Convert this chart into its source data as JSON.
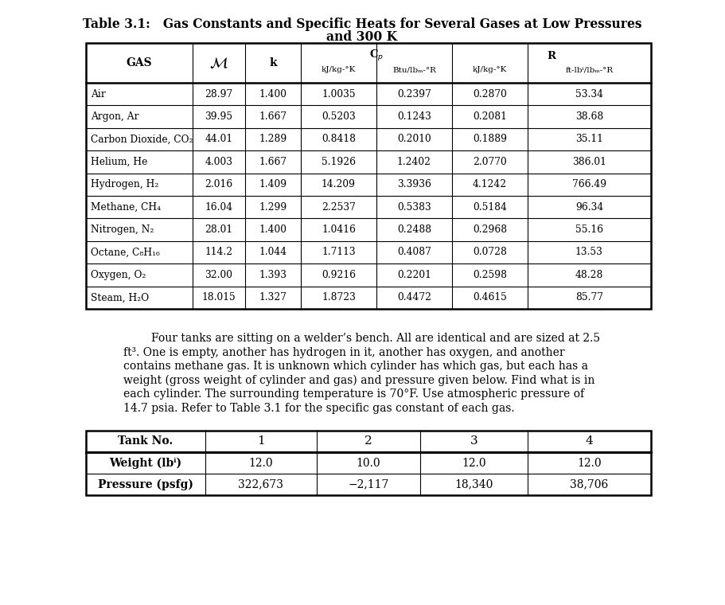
{
  "title_line1": "Table 3.1:   Gas Constants and Specific Heats for Several Gases at Low Pressures",
  "title_line2": "and 300 K",
  "table1_rows": [
    [
      "Air",
      "28.97",
      "1.400",
      "1.0035",
      "0.2397",
      "0.2870",
      "53.34"
    ],
    [
      "Argon, Ar",
      "39.95",
      "1.667",
      "0.5203",
      "0.1243",
      "0.2081",
      "38.68"
    ],
    [
      "Carbon Dioxide, CO₂",
      "44.01",
      "1.289",
      "0.8418",
      "0.2010",
      "0.1889",
      "35.11"
    ],
    [
      "Helium, He",
      "4.003",
      "1.667",
      "5.1926",
      "1.2402",
      "2.0770",
      "386.01"
    ],
    [
      "Hydrogen, H₂",
      "2.016",
      "1.409",
      "14.209",
      "3.3936",
      "4.1242",
      "766.49"
    ],
    [
      "Methane, CH₄",
      "16.04",
      "1.299",
      "2.2537",
      "0.5383",
      "0.5184",
      "96.34"
    ],
    [
      "Nitrogen, N₂",
      "28.01",
      "1.400",
      "1.0416",
      "0.2488",
      "0.2968",
      "55.16"
    ],
    [
      "Octane, C₈H₁₆",
      "114.2",
      "1.044",
      "1.7113",
      "0.4087",
      "0.0728",
      "13.53"
    ],
    [
      "Oxygen, O₂",
      "32.00",
      "1.393",
      "0.9216",
      "0.2201",
      "0.2598",
      "48.28"
    ],
    [
      "Steam, H₂O",
      "18.015",
      "1.327",
      "1.8723",
      "0.4472",
      "0.4615",
      "85.77"
    ]
  ],
  "paragraph_lines": [
    "        Four tanks are sitting on a welder’s bench. All are identical and are sized at 2.5",
    "ft³. One is empty, another has hydrogen in it, another has oxygen, and another",
    "contains methane gas. It is unknown which cylinder has which gas, but each has a",
    "weight (gross weight of cylinder and gas) and pressure given below. Find what is in",
    "each cylinder. The surrounding temperature is 70°F. Use atmospheric pressure of",
    "14.7 psia. Refer to Table 3.1 for the specific gas constant of each gas."
  ],
  "table2_headers": [
    "Tank No.",
    "1",
    "2",
    "3",
    "4"
  ],
  "table2_rows": [
    [
      "Weight (lbⁱ)",
      "12.0",
      "10.0",
      "12.0",
      "12.0"
    ],
    [
      "Pressure (psfg)",
      "322,673",
      "−2,117",
      "18,340",
      "38,706"
    ]
  ],
  "bg_color": "#ffffff",
  "text_color": "#000000",
  "line_color": "#000000"
}
